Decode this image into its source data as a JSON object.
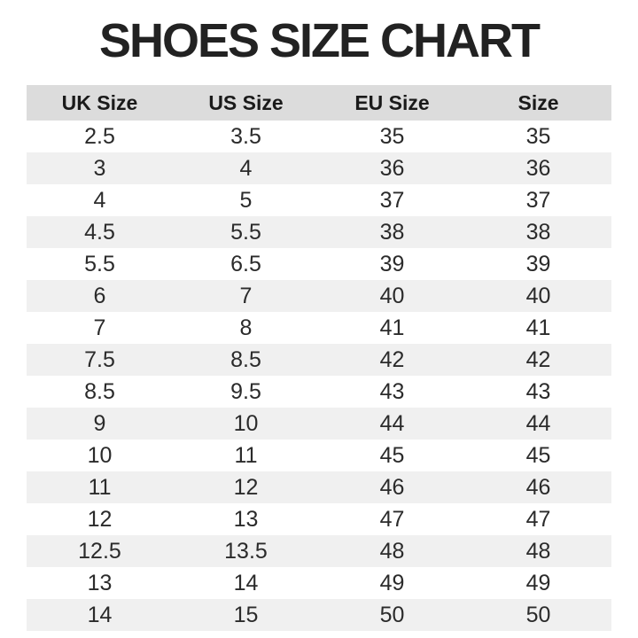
{
  "title": "SHOES SIZE CHART",
  "chart_data": {
    "type": "table",
    "title": "SHOES SIZE CHART",
    "columns": [
      "UK Size",
      "US Size",
      "EU Size",
      "Size"
    ],
    "rows": [
      [
        "2.5",
        "3.5",
        "35",
        "35"
      ],
      [
        "3",
        "4",
        "36",
        "36"
      ],
      [
        "4",
        "5",
        "37",
        "37"
      ],
      [
        "4.5",
        "5.5",
        "38",
        "38"
      ],
      [
        "5.5",
        "6.5",
        "39",
        "39"
      ],
      [
        "6",
        "7",
        "40",
        "40"
      ],
      [
        "7",
        "8",
        "41",
        "41"
      ],
      [
        "7.5",
        "8.5",
        "42",
        "42"
      ],
      [
        "8.5",
        "9.5",
        "43",
        "43"
      ],
      [
        "9",
        "10",
        "44",
        "44"
      ],
      [
        "10",
        "11",
        "45",
        "45"
      ],
      [
        "11",
        "12",
        "46",
        "46"
      ],
      [
        "12",
        "13",
        "47",
        "47"
      ],
      [
        "12.5",
        "13.5",
        "48",
        "48"
      ],
      [
        "13",
        "14",
        "49",
        "49"
      ],
      [
        "14",
        "15",
        "50",
        "50"
      ]
    ],
    "layout": {
      "zebra_striping": true,
      "first_data_row_background": "white",
      "column_alignment": "center"
    }
  },
  "colors": {
    "background": "#ffffff",
    "header_row_bg": "#dcdcdc",
    "stripe_row_bg": "#f0f0f0",
    "title_color": "#222222",
    "cell_text_color": "#2b2b2b"
  }
}
